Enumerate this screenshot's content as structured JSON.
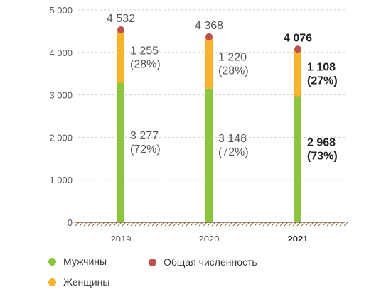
{
  "chart_data": {
    "type": "bar",
    "stacked": true,
    "categories": [
      "2019",
      "2020",
      "2021"
    ],
    "highlight_category": "2021",
    "series": [
      {
        "name": "Мужчины",
        "values": [
          3277,
          3148,
          2968
        ],
        "value_labels": [
          "3 277",
          "3 148",
          "2 968"
        ],
        "share_labels": [
          "(72%)",
          "(72%)",
          "(73%)"
        ],
        "color": "#8cc63f"
      },
      {
        "name": "Женщины",
        "values": [
          1255,
          1220,
          1108
        ],
        "value_labels": [
          "1 255",
          "1 220",
          "1 108"
        ],
        "share_labels": [
          "(28%)",
          "(28%)",
          "(27%)"
        ],
        "color": "#f7b32b"
      }
    ],
    "total": {
      "name": "Общая численность",
      "values": [
        4532,
        4368,
        4076
      ],
      "labels": [
        "4 532",
        "4 368",
        "4 076"
      ],
      "color": "#c0504d"
    },
    "y_ticks": [
      0,
      1000,
      2000,
      3000,
      4000,
      5000
    ],
    "y_tick_labels": [
      "0",
      "1 000",
      "2 000",
      "3 000",
      "4 000",
      "5 000"
    ],
    "ylim": [
      0,
      5000
    ],
    "grid": true,
    "legend_position": "bottom-left"
  }
}
